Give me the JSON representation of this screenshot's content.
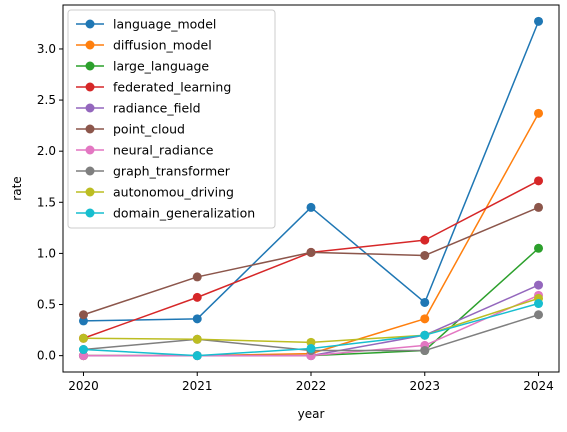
{
  "chart_data": {
    "type": "line",
    "title": "",
    "xlabel": "year",
    "ylabel": "rate",
    "x": [
      2020,
      2021,
      2022,
      2023,
      2024
    ],
    "xlim": [
      2019.82,
      2024.18
    ],
    "ylim": [
      -0.16,
      3.43
    ],
    "yticks": [
      0.0,
      0.5,
      1.0,
      1.5,
      2.0,
      2.5,
      3.0
    ],
    "ytick_labels": [
      "0.0",
      "0.5",
      "1.0",
      "1.5",
      "2.0",
      "2.5",
      "3.0"
    ],
    "xtick_labels": [
      "2020",
      "2021",
      "2022",
      "2023",
      "2024"
    ],
    "grid": false,
    "legend_position": "top-left",
    "series": [
      {
        "name": "language_model",
        "color": "#1f77b4",
        "values": [
          0.34,
          0.36,
          1.45,
          0.52,
          3.27
        ]
      },
      {
        "name": "diffusion_model",
        "color": "#ff7f0e",
        "values": [
          0.0,
          0.0,
          0.02,
          0.36,
          2.37
        ]
      },
      {
        "name": "large_language",
        "color": "#2ca02c",
        "values": [
          0.0,
          0.0,
          0.0,
          0.05,
          1.05
        ]
      },
      {
        "name": "federated_learning",
        "color": "#d62728",
        "values": [
          0.17,
          0.57,
          1.01,
          1.13,
          1.71
        ]
      },
      {
        "name": "radiance_field",
        "color": "#9467bd",
        "values": [
          0.0,
          0.0,
          0.0,
          0.2,
          0.69
        ]
      },
      {
        "name": "point_cloud",
        "color": "#8c564b",
        "values": [
          0.4,
          0.77,
          1.01,
          0.98,
          1.45
        ]
      },
      {
        "name": "neural_radiance",
        "color": "#e377c2",
        "values": [
          0.0,
          0.0,
          0.0,
          0.1,
          0.59
        ]
      },
      {
        "name": "graph_transformer",
        "color": "#7f7f7f",
        "values": [
          0.06,
          0.16,
          0.05,
          0.05,
          0.4
        ]
      },
      {
        "name": "autonomou_driving",
        "color": "#bcbd22",
        "values": [
          0.17,
          0.16,
          0.13,
          0.2,
          0.56
        ]
      },
      {
        "name": "domain_generalization",
        "color": "#17becf",
        "values": [
          0.06,
          0.0,
          0.07,
          0.2,
          0.51
        ]
      }
    ]
  }
}
